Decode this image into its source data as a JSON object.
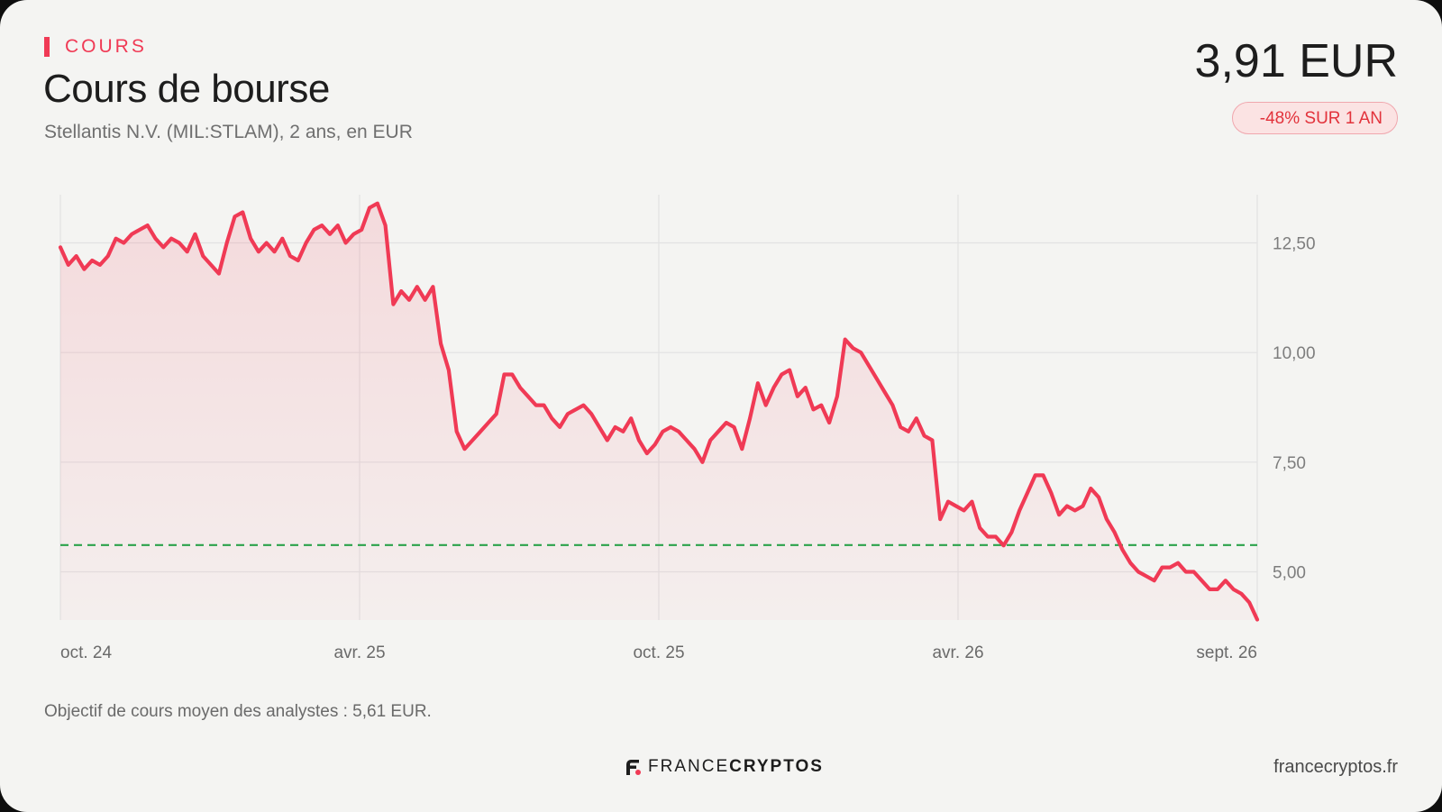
{
  "header": {
    "kicker": "COURS",
    "title": "Cours de bourse",
    "subtitle": "Stellantis N.V. (MIL:STLAM), 2 ans, en EUR",
    "price": "3,91 EUR",
    "change_badge": "-48% SUR 1 AN"
  },
  "note": "Objectif de cours moyen des analystes : 5,61 EUR.",
  "footer": {
    "brand_part1": "FRANCE",
    "brand_part2": "CRYPTOS",
    "site": "francecryptos.fr"
  },
  "colors": {
    "accent": "#f03a55",
    "line": "#f03a55",
    "target_line": "#2aa24a",
    "badge_text": "#e2323b"
  },
  "chart_data": {
    "type": "line",
    "xlabel": "",
    "ylabel": "",
    "x_start": "oct. 24",
    "x_end": "sept. 26",
    "x_ticks": [
      "oct. 24",
      "avr. 25",
      "oct. 25",
      "avr. 26",
      "sept. 26"
    ],
    "y_ticks": [
      "12,50",
      "10,00",
      "7,50",
      "5,00"
    ],
    "y_tick_values": [
      12.5,
      10.0,
      7.5,
      5.0
    ],
    "ylim": [
      3.9,
      13.6
    ],
    "grid": true,
    "fill_under_line": true,
    "target_price": 5.61,
    "series": [
      {
        "values": [
          12.4,
          12.0,
          12.2,
          11.9,
          12.1,
          12.0,
          12.2,
          12.6,
          12.5,
          12.7,
          12.8,
          12.9,
          12.6,
          12.4,
          12.6,
          12.5,
          12.3,
          12.7,
          12.2,
          12.0,
          11.8,
          12.5,
          13.1,
          13.2,
          12.6,
          12.3,
          12.5,
          12.3,
          12.6,
          12.2,
          12.1,
          12.5,
          12.8,
          12.9,
          12.7,
          12.9,
          12.5,
          12.7,
          12.8,
          13.3,
          13.4,
          12.9,
          11.1,
          11.4,
          11.2,
          11.5,
          11.2,
          11.5,
          10.2,
          9.6,
          8.2,
          7.8,
          8.0,
          8.2,
          8.4,
          8.6,
          9.5,
          9.5,
          9.2,
          9.0,
          8.8,
          8.8,
          8.5,
          8.3,
          8.6,
          8.7,
          8.8,
          8.6,
          8.3,
          8.0,
          8.3,
          8.2,
          8.5,
          8.0,
          7.7,
          7.9,
          8.2,
          8.3,
          8.2,
          8.0,
          7.8,
          7.5,
          8.0,
          8.2,
          8.4,
          8.3,
          7.8,
          8.5,
          9.3,
          8.8,
          9.2,
          9.5,
          9.6,
          9.0,
          9.2,
          8.7,
          8.8,
          8.4,
          9.0,
          10.3,
          10.1,
          10.0,
          9.7,
          9.4,
          9.1,
          8.8,
          8.3,
          8.2,
          8.5,
          8.1,
          8.0,
          6.2,
          6.6,
          6.5,
          6.4,
          6.6,
          6.0,
          5.8,
          5.8,
          5.6,
          5.9,
          6.4,
          6.8,
          7.2,
          7.2,
          6.8,
          6.3,
          6.5,
          6.4,
          6.5,
          6.9,
          6.7,
          6.2,
          5.9,
          5.5,
          5.2,
          5.0,
          4.9,
          4.8,
          5.1,
          5.1,
          5.2,
          5.0,
          5.0,
          4.8,
          4.6,
          4.6,
          4.8,
          4.6,
          4.5,
          4.3,
          3.91
        ]
      }
    ]
  }
}
